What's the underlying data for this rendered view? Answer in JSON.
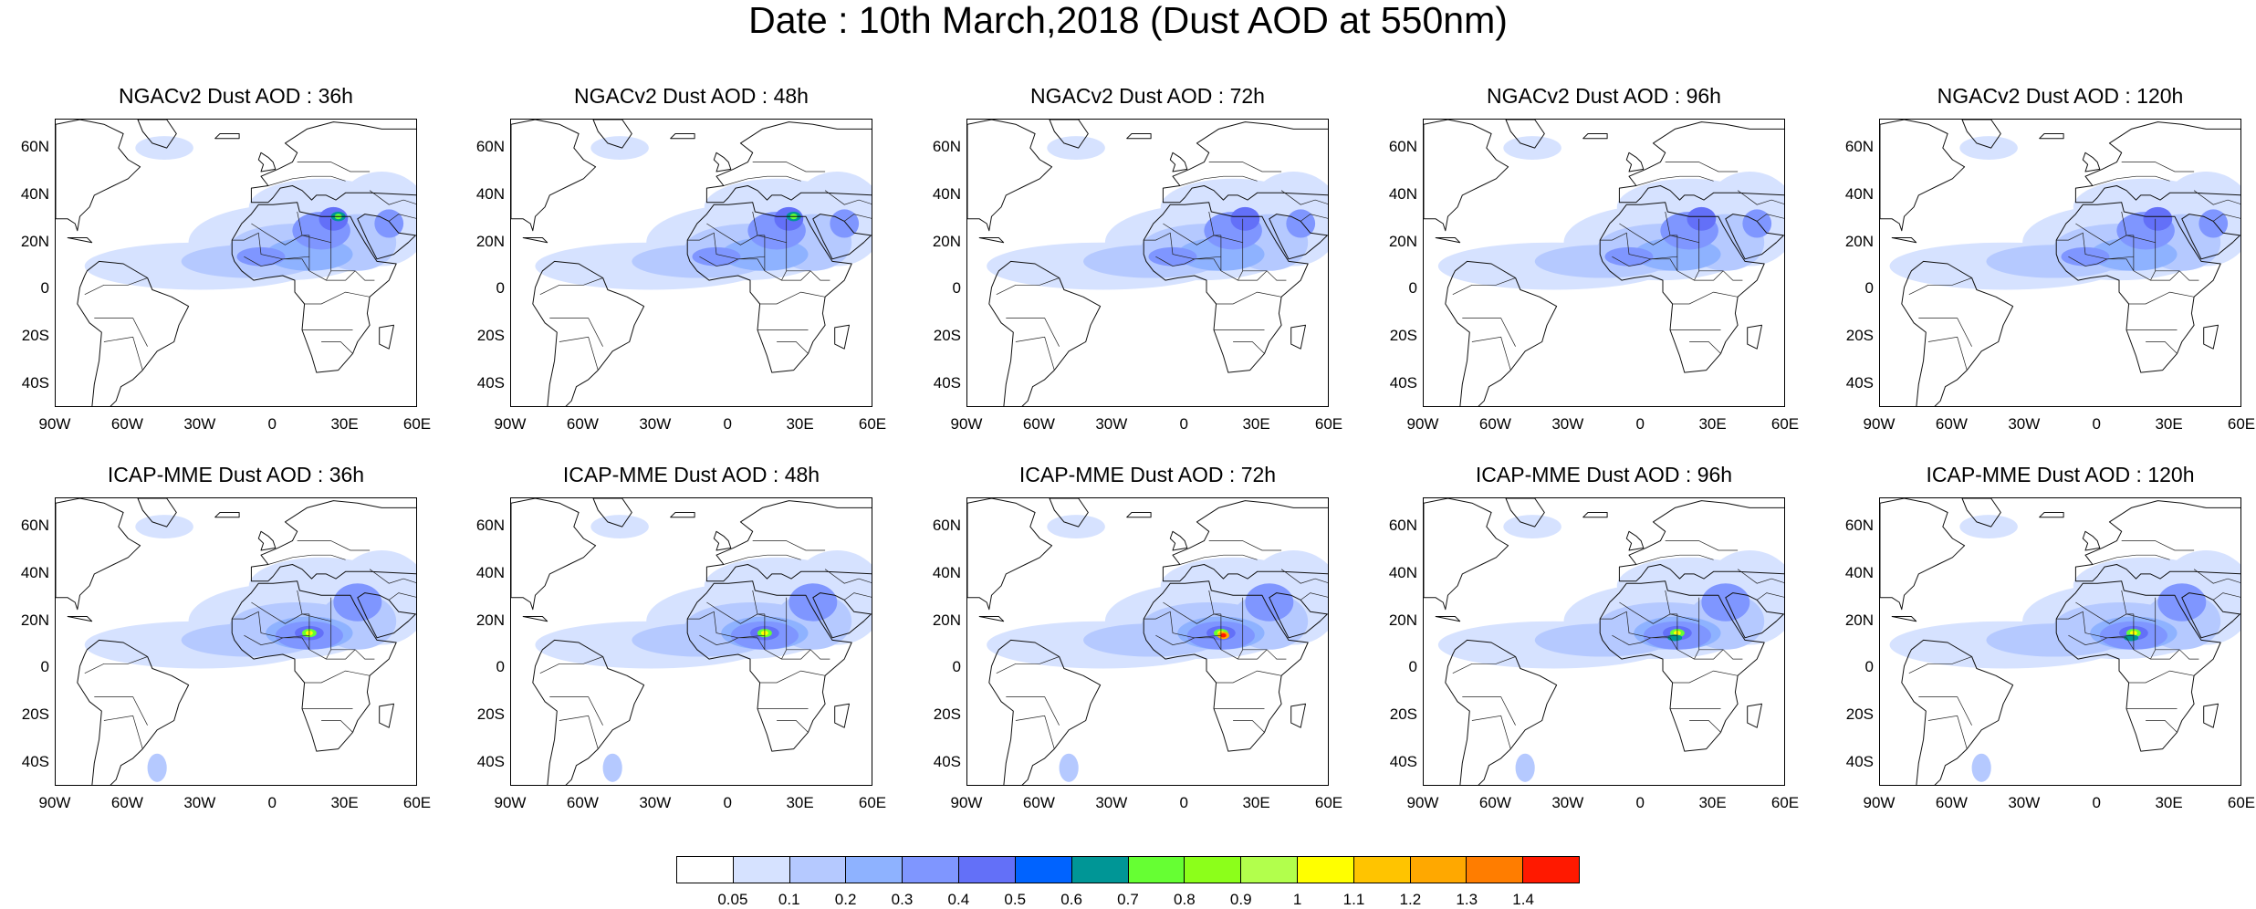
{
  "title": "Date : 10th March,2018 (Dust AOD at 550nm)",
  "rows": [
    {
      "model": "NGACv2",
      "panels": [
        {
          "title": "NGACv2 Dust AOD : 36h"
        },
        {
          "title": "NGACv2 Dust AOD : 48h"
        },
        {
          "title": "NGACv2 Dust AOD : 72h"
        },
        {
          "title": "NGACv2 Dust AOD : 96h"
        },
        {
          "title": "NGACv2 Dust AOD : 120h"
        }
      ]
    },
    {
      "model": "ICAP-MME",
      "panels": [
        {
          "title": "ICAP-MME Dust AOD : 36h"
        },
        {
          "title": "ICAP-MME Dust AOD : 48h"
        },
        {
          "title": "ICAP-MME Dust AOD : 72h"
        },
        {
          "title": "ICAP-MME Dust AOD : 96h"
        },
        {
          "title": "ICAP-MME Dust AOD : 120h"
        }
      ]
    }
  ],
  "lat_ticks": [
    "60N",
    "40N",
    "20N",
    "0",
    "20S",
    "40S"
  ],
  "lon_ticks": [
    "90W",
    "60W",
    "30W",
    "0",
    "30E",
    "60E"
  ],
  "colorbar": {
    "colors": [
      "#ffffff",
      "#d6e2ff",
      "#b5c9ff",
      "#8eb2ff",
      "#7f96ff",
      "#6370f8",
      "#0063ff",
      "#009696",
      "#66ff33",
      "#8cff1a",
      "#b2ff4c",
      "#ffff00",
      "#ffc400",
      "#ffa800",
      "#ff7d00",
      "#ff1900"
    ],
    "labels": [
      "0.05",
      "0.1",
      "0.2",
      "0.3",
      "0.4",
      "0.5",
      "0.6",
      "0.7",
      "0.8",
      "0.9",
      "1",
      "1.1",
      "1.2",
      "1.3",
      "1.4"
    ]
  }
}
